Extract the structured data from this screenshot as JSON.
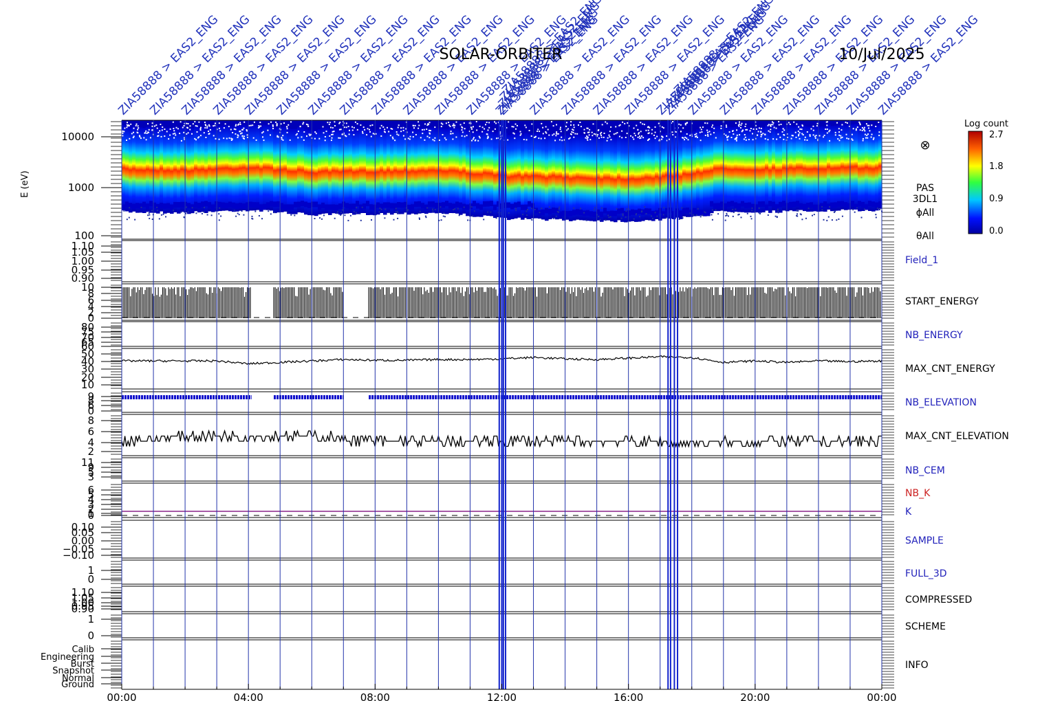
{
  "header": {
    "mission": "SOLAR-ORBITER",
    "date": "10/Jul/2025"
  },
  "annotations": {
    "prefix": "ZIA58888 > EAS2_ENG",
    "alt_prefix": "ZIA58888 > EAS2_ENG",
    "count_regular": 24,
    "marker_hours": [
      0,
      1,
      2,
      3,
      4,
      5,
      6,
      7,
      8,
      9,
      10,
      11,
      12,
      13,
      14,
      15,
      16,
      17,
      18,
      19,
      20,
      21,
      22,
      23,
      24
    ],
    "dense_marker_hours": [
      11.92,
      12.0,
      12.05,
      12.12,
      17.25,
      17.33,
      17.45,
      17.55
    ]
  },
  "colorbar": {
    "title": "Log count",
    "ticks": [
      "2.7",
      "1.8",
      "0.9",
      "0.0"
    ]
  },
  "panels": [
    {
      "id": "spectrogram",
      "ylabel": "E (eV)",
      "yticks": [
        "10000",
        "1000",
        "100"
      ],
      "right_labels": [
        "PAS",
        "3DL1",
        "ϕAll",
        "θAll"
      ],
      "right_color": "#000000",
      "symbol": "⊗"
    },
    {
      "id": "field1",
      "yticks": [
        "1.10",
        "1.05",
        "1.00",
        "0.95",
        "0.90"
      ],
      "right_labels": [
        "Field_1"
      ],
      "right_color": "#2222bb"
    },
    {
      "id": "start_energy",
      "yticks": [
        "10",
        "8",
        "6",
        "4",
        "2",
        "0"
      ],
      "right_labels": [
        "START_ENERGY"
      ],
      "right_color": "#000000"
    },
    {
      "id": "nb_energy",
      "yticks": [
        "80",
        "75",
        "70",
        "65",
        "60"
      ],
      "right_labels": [
        "NB_ENERGY"
      ],
      "right_color": "#2222bb"
    },
    {
      "id": "max_cnt_energy",
      "yticks": [
        "50",
        "40",
        "30",
        "20",
        "10"
      ],
      "right_labels": [
        "MAX_CNT_ENERGY"
      ],
      "right_color": "#000000"
    },
    {
      "id": "nb_elevation",
      "yticks": [
        "9",
        "8",
        "6",
        "0"
      ],
      "right_labels": [
        "NB_ELEVATION"
      ],
      "right_color": "#2222bb"
    },
    {
      "id": "max_cnt_elevation",
      "yticks": [
        "8",
        "6",
        "4",
        "2"
      ],
      "right_labels": [
        "MAX_CNT_ELEVATION"
      ],
      "right_color": "#000000"
    },
    {
      "id": "nb_cem",
      "yticks": [
        "11",
        "9",
        "5",
        "3"
      ],
      "right_labels": [
        "NB_CEM"
      ],
      "right_color": "#2222bb"
    },
    {
      "id": "nb_k",
      "yticks": [
        "6",
        "5",
        "4",
        "3",
        "2",
        "1",
        "0"
      ],
      "right_labels": [
        "NB_K",
        "K"
      ],
      "right_color": "#cc2222"
    },
    {
      "id": "sample",
      "yticks": [
        "0.10",
        "0.05",
        "0.00",
        "−0.05",
        "−0.10"
      ],
      "right_labels": [
        "SAMPLE"
      ],
      "right_color": "#2222bb"
    },
    {
      "id": "full_3d",
      "yticks": [
        "1",
        "0"
      ],
      "right_labels": [
        "FULL_3D"
      ],
      "right_color": "#2222bb"
    },
    {
      "id": "compressed",
      "yticks": [
        "1.10",
        "1.05",
        "1.00",
        "0.95",
        "0.90"
      ],
      "right_labels": [
        "COMPRESSED"
      ],
      "right_color": "#000000"
    },
    {
      "id": "scheme",
      "yticks": [
        "1",
        "0"
      ],
      "right_labels": [
        "SCHEME"
      ],
      "right_color": "#000000"
    },
    {
      "id": "info",
      "yticks": [
        "Calib",
        "Engineering",
        "Burst",
        "Snapshot",
        "Normal",
        "Ground"
      ],
      "right_labels": [
        "INFO"
      ],
      "right_color": "#000000"
    }
  ],
  "chart_data": {
    "type": "heatmap",
    "title": "SOLAR-ORBITER",
    "xlabel": "",
    "ylabel": "E (eV)",
    "x_ticks": [
      "00:00",
      "04:00",
      "08:00",
      "12:00",
      "16:00",
      "20:00",
      "00:00"
    ],
    "x_range_hours": [
      0,
      24
    ],
    "y_scale": "log",
    "ylim": [
      100,
      20000
    ],
    "colorbar_range": [
      0.0,
      2.7
    ],
    "peak_energy_eV": [
      2300,
      2200,
      2500,
      2000,
      2100,
      2200,
      1700,
      1600,
      1500,
      1700,
      2400,
      2300,
      2400,
      2500
    ],
    "peak_energy_hours": [
      0,
      2,
      4,
      6,
      8,
      10,
      12,
      14,
      16,
      17.5,
      19,
      20,
      22,
      24
    ],
    "max_cnt_energy": {
      "hours": [
        0,
        1,
        2,
        3,
        4,
        5,
        6,
        7,
        8,
        9,
        10,
        11,
        12,
        13,
        14,
        15,
        16,
        17,
        18,
        19,
        20,
        21,
        22,
        23,
        24
      ],
      "values": [
        40,
        40,
        40,
        40,
        36,
        38,
        40,
        42,
        41,
        41,
        42,
        42,
        43,
        45,
        43,
        42,
        44,
        46,
        45,
        38,
        40,
        38,
        40,
        39,
        40
      ]
    },
    "max_cnt_elevation": {
      "hours": [
        0,
        2,
        4,
        6,
        8,
        10,
        12,
        14,
        16,
        18,
        20,
        22,
        24
      ],
      "values": [
        4,
        5,
        5,
        5,
        4,
        4,
        4,
        4,
        4,
        3.5,
        4,
        4,
        4
      ]
    },
    "start_energy_gaps_hours": [
      [
        4.1,
        4.8
      ],
      [
        7.0,
        7.8
      ]
    ],
    "nb_elevation_level": 9
  }
}
